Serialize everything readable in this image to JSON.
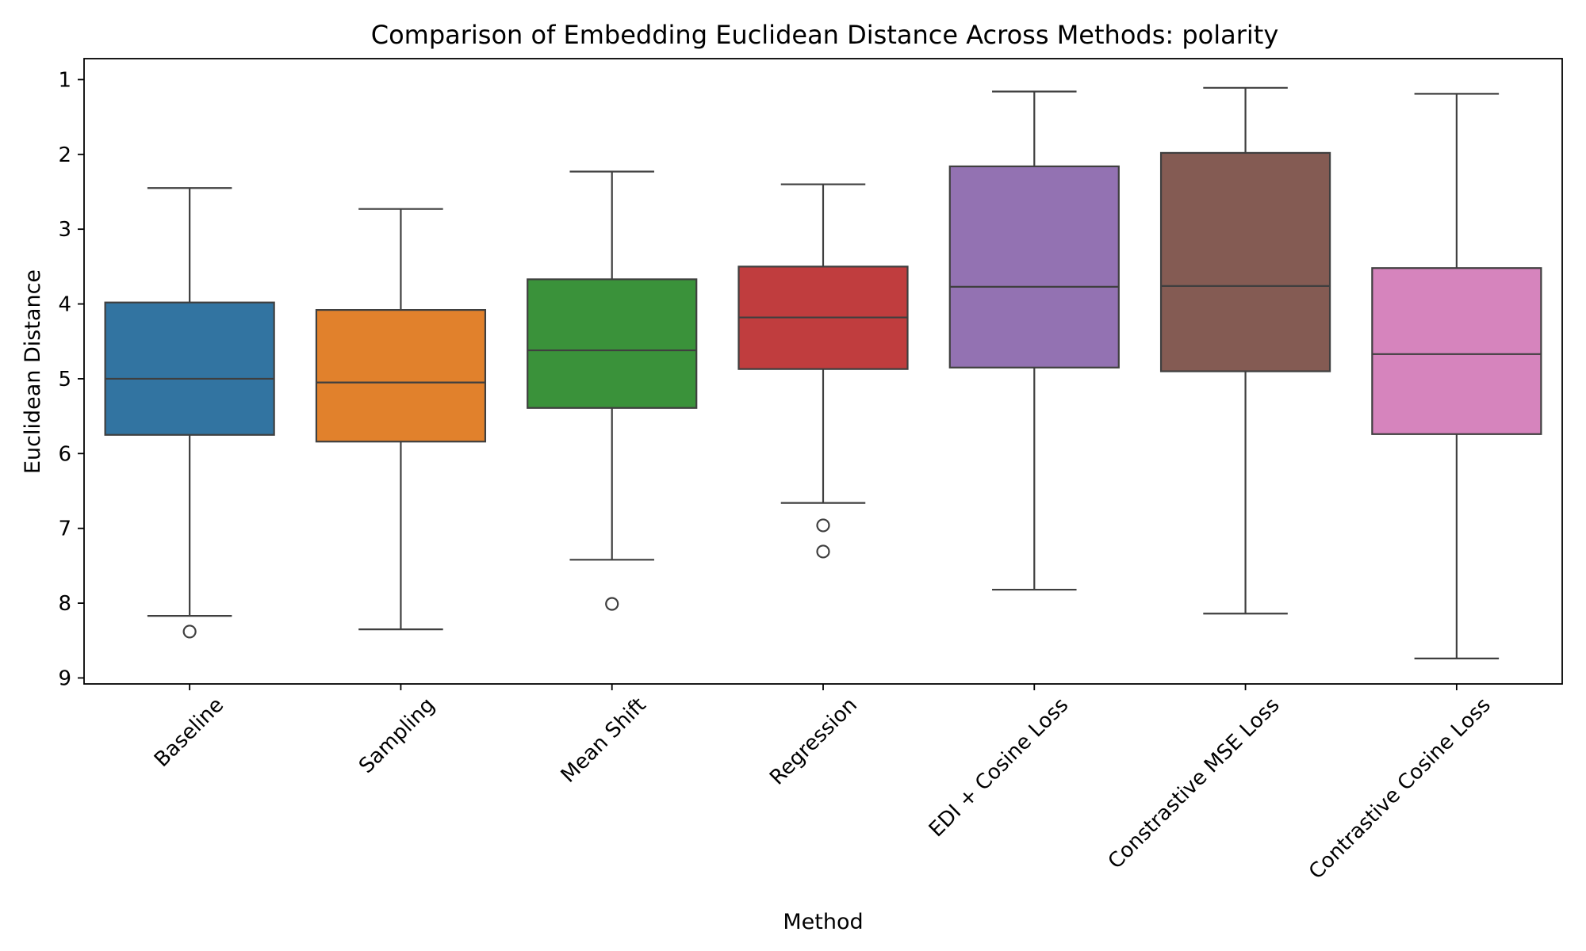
{
  "chart_data": {
    "type": "box",
    "title": "Comparison of Embedding Euclidean Distance Across Methods: polarity",
    "xlabel": "Method",
    "ylabel": "Euclidean Distance",
    "y_axis": {
      "inverted": true,
      "range": [
        0.72,
        9.08
      ],
      "ticks": [
        1,
        2,
        3,
        4,
        5,
        6,
        7,
        8,
        9
      ]
    },
    "grid": false,
    "legend": "none",
    "categories": [
      "Baseline",
      "Sampling",
      "Mean Shift",
      "Regression",
      "EDI + Cosine Loss",
      "Constrastive MSE Loss",
      "Contrastive Cosine Loss"
    ],
    "series": [
      {
        "category": "Baseline",
        "color": "#3274a1",
        "whisker_low": 2.45,
        "q1": 3.98,
        "median": 5.0,
        "q3": 5.75,
        "whisker_high": 8.17,
        "outliers": [
          8.38
        ]
      },
      {
        "category": "Sampling",
        "color": "#e1812c",
        "whisker_low": 2.73,
        "q1": 4.08,
        "median": 5.05,
        "q3": 5.84,
        "whisker_high": 8.35,
        "outliers": []
      },
      {
        "category": "Mean Shift",
        "color": "#3a923a",
        "whisker_low": 2.23,
        "q1": 3.67,
        "median": 4.62,
        "q3": 5.39,
        "whisker_high": 7.42,
        "outliers": [
          8.01
        ]
      },
      {
        "category": "Regression",
        "color": "#c03d3e",
        "whisker_low": 2.4,
        "q1": 3.5,
        "median": 4.18,
        "q3": 4.87,
        "whisker_high": 6.66,
        "outliers": [
          6.96,
          7.31
        ]
      },
      {
        "category": "EDI + Cosine Loss",
        "color": "#9372b2",
        "whisker_low": 1.16,
        "q1": 2.16,
        "median": 3.77,
        "q3": 4.85,
        "whisker_high": 7.82,
        "outliers": []
      },
      {
        "category": "Constrastive MSE Loss",
        "color": "#845b53",
        "whisker_low": 1.11,
        "q1": 1.98,
        "median": 3.76,
        "q3": 4.9,
        "whisker_high": 8.14,
        "outliers": []
      },
      {
        "category": "Contrastive Cosine Loss",
        "color": "#d684bd",
        "whisker_low": 1.19,
        "q1": 3.52,
        "median": 4.67,
        "q3": 5.74,
        "whisker_high": 8.74,
        "outliers": []
      }
    ]
  }
}
